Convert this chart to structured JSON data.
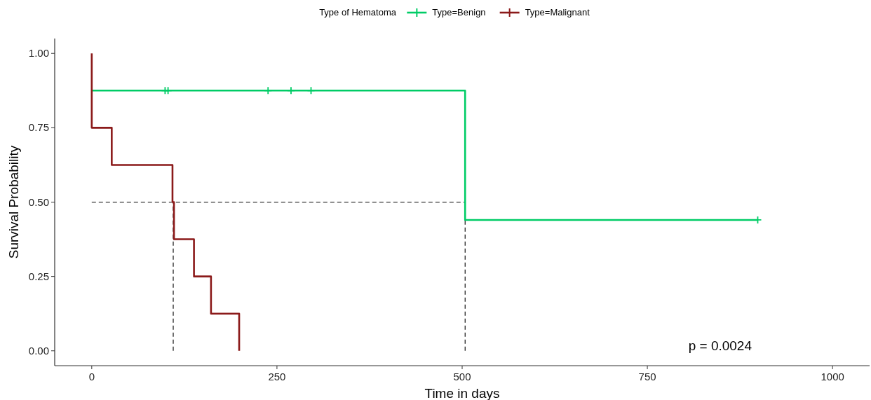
{
  "chart_data": {
    "type": "step",
    "legend_title": "Type of Hematoma",
    "legend": "top",
    "xlabel": "Time in days",
    "ylabel": "Survival Probability",
    "xlim": [
      -50,
      1050
    ],
    "xticks": [
      0,
      250,
      500,
      750,
      1000
    ],
    "ylim": [
      -0.05,
      1.05
    ],
    "yticks": [
      {
        "value": 0,
        "label": "0.00"
      },
      {
        "value": 0.25,
        "label": "0.25"
      },
      {
        "value": 0.5,
        "label": "0.50"
      },
      {
        "value": 0.75,
        "label": "0.75"
      },
      {
        "value": 1,
        "label": "1.00"
      }
    ],
    "series": [
      {
        "type": "line",
        "line_style": "dashed",
        "marker": "none",
        "color": "#000000",
        "x": [
          0,
          504
        ],
        "values": [
          0.5,
          0.5
        ]
      },
      {
        "type": "line",
        "line_style": "dashed",
        "marker": "none",
        "color": "#000000",
        "x": [
          110,
          110
        ],
        "values": [
          0,
          0.5
        ]
      },
      {
        "type": "line",
        "line_style": "dashed",
        "marker": "none",
        "color": "#000000",
        "x": [
          504,
          504
        ],
        "values": [
          0,
          0.5
        ]
      },
      {
        "name": "Type=Benign",
        "marker": "none",
        "color": "#00cc66",
        "x": [
          0,
          504,
          899
        ],
        "values": [
          0.875,
          0.44,
          0.44
        ]
      },
      {
        "type": "scatter",
        "marker": "cross",
        "color": "#00cc66",
        "x": [
          99,
          103,
          238,
          269,
          296,
          899
        ],
        "values": [
          0.875,
          0.875,
          0.875,
          0.875,
          0.875,
          0.44
        ]
      },
      {
        "name": "Type=Malignant",
        "marker": "none",
        "color": "#8b1a1a",
        "x": [
          0,
          0,
          27,
          109,
          111,
          138,
          161,
          199
        ],
        "values": [
          1,
          0.75,
          0.625,
          0.5,
          0.375,
          0.25,
          0.125,
          0
        ]
      }
    ],
    "annotations": [
      "p = 0.0024"
    ]
  }
}
